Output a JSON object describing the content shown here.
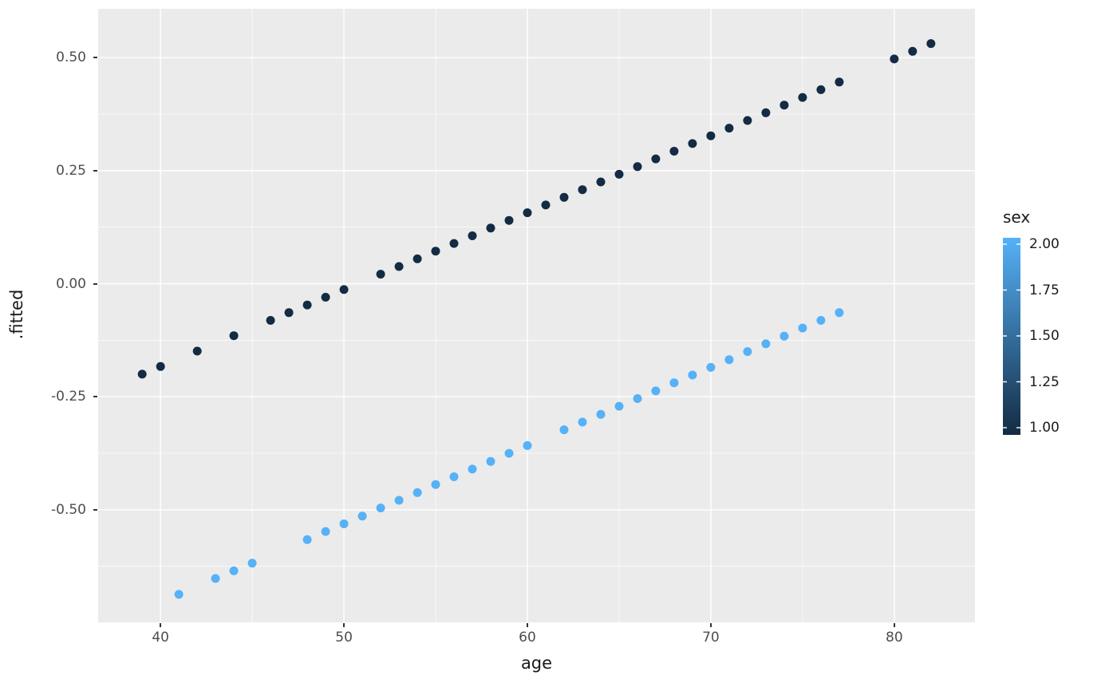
{
  "chart_data": {
    "type": "scatter",
    "title": "",
    "xlabel": "age",
    "ylabel": ".fitted",
    "x_range": [
      36.6,
      84.4
    ],
    "y_range": [
      -0.749,
      0.608
    ],
    "grid": true,
    "x_ticks": [
      {
        "value": 40,
        "label": "40"
      },
      {
        "value": 50,
        "label": "50"
      },
      {
        "value": 60,
        "label": "60"
      },
      {
        "value": 70,
        "label": "70"
      },
      {
        "value": 80,
        "label": "80"
      }
    ],
    "x_minor_ticks": [
      45,
      55,
      65,
      75
    ],
    "y_ticks": [
      {
        "value": 0.5,
        "label": "0.50"
      },
      {
        "value": 0.25,
        "label": "0.25"
      },
      {
        "value": 0.0,
        "label": "0.00"
      },
      {
        "value": -0.25,
        "label": "-0.25"
      },
      {
        "value": -0.5,
        "label": "-0.50"
      }
    ],
    "y_minor_ticks": [
      0.375,
      0.125,
      -0.125,
      -0.375,
      -0.625
    ],
    "series": [
      {
        "name": "sex-1",
        "color": "#132B43",
        "x": [
          39,
          40,
          42,
          44,
          46,
          47,
          48,
          49,
          50,
          52,
          53,
          54,
          55,
          56,
          57,
          58,
          59,
          60,
          61,
          62,
          63,
          64,
          65,
          66,
          67,
          68,
          69,
          70,
          71,
          72,
          73,
          74,
          75,
          76,
          77,
          80,
          81,
          82
        ],
        "y": [
          -0.2,
          -0.183,
          -0.149,
          -0.115,
          -0.081,
          -0.064,
          -0.047,
          -0.03,
          -0.013,
          0.021,
          0.038,
          0.055,
          0.072,
          0.089,
          0.106,
          0.123,
          0.14,
          0.157,
          0.174,
          0.191,
          0.208,
          0.225,
          0.242,
          0.259,
          0.276,
          0.293,
          0.31,
          0.327,
          0.344,
          0.361,
          0.378,
          0.395,
          0.412,
          0.429,
          0.446,
          0.497,
          0.514,
          0.531
        ]
      },
      {
        "name": "sex-2",
        "color": "#56B1F7",
        "x": [
          41,
          43,
          44,
          45,
          48,
          49,
          50,
          51,
          52,
          53,
          54,
          55,
          56,
          57,
          58,
          59,
          60,
          62,
          63,
          64,
          65,
          66,
          67,
          68,
          69,
          70,
          71,
          72,
          73,
          74,
          75,
          76,
          77
        ],
        "y": [
          -0.687,
          -0.652,
          -0.635,
          -0.618,
          -0.566,
          -0.548,
          -0.531,
          -0.514,
          -0.496,
          -0.479,
          -0.462,
          -0.444,
          -0.427,
          -0.41,
          -0.393,
          -0.375,
          -0.358,
          -0.323,
          -0.306,
          -0.289,
          -0.271,
          -0.254,
          -0.237,
          -0.219,
          -0.202,
          -0.185,
          -0.168,
          -0.15,
          -0.133,
          -0.116,
          -0.098,
          -0.081,
          -0.064
        ]
      }
    ],
    "legend": {
      "title": "sex",
      "type": "colorbar",
      "position": "right",
      "range": [
        1.0,
        2.0
      ],
      "labels": [
        {
          "value": 2.0,
          "label": "2.00"
        },
        {
          "value": 1.75,
          "label": "1.75"
        },
        {
          "value": 1.5,
          "label": "1.50"
        },
        {
          "value": 1.25,
          "label": "1.25"
        },
        {
          "value": 1.0,
          "label": "1.00"
        }
      ],
      "color_low": "#132B43",
      "color_mid": "#346E9D",
      "color_high": "#56B1F7"
    },
    "style": {
      "panel_bg": "#EBEBEB",
      "grid_color": "#FFFFFF",
      "tick_label_color": "#4D4D4D",
      "axis_title_color": "#1a1a1a",
      "point_radius": 5.5
    }
  }
}
